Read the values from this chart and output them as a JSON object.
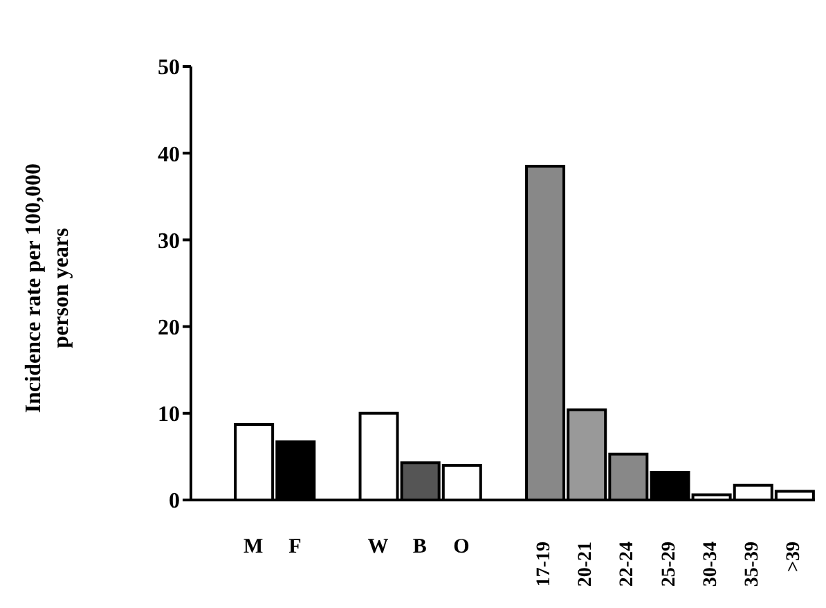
{
  "chart_data": {
    "type": "bar",
    "ylabel": "Incidence rate per 100,000 person years",
    "categories": [
      null,
      "M",
      "F",
      null,
      "W",
      "B",
      "O",
      null,
      "17-19",
      "20-21",
      "22-24",
      "25-29",
      "30-34",
      "35-39",
      ">39"
    ],
    "values": [
      null,
      8.7,
      6.7,
      null,
      10.0,
      4.3,
      4.0,
      null,
      38.5,
      10.4,
      5.3,
      3.2,
      0.6,
      1.7,
      1.0
    ],
    "colors": [
      "#ffffff",
      "#ffffff",
      "#000000",
      "#ffffff",
      "#ffffff",
      "#555555",
      "#ffffff",
      "#ffffff",
      "#888888",
      "#999999",
      "#888888",
      "#000000",
      "#ffffff",
      "#ffffff",
      "#ffffff"
    ],
    "ylim": [
      0,
      50
    ],
    "yticks": [
      0,
      10,
      20,
      30,
      40,
      50
    ],
    "grid": false,
    "legend": false
  }
}
